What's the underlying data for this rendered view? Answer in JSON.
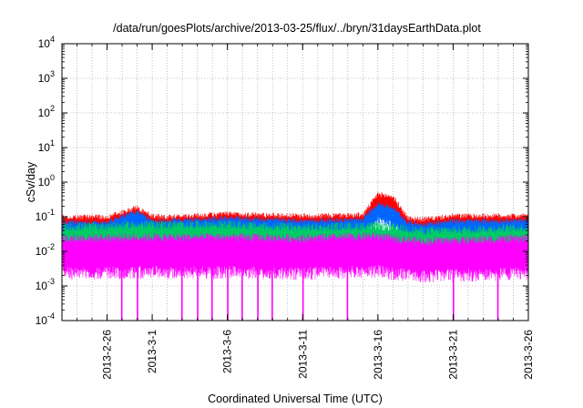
{
  "chart_data": {
    "type": "line",
    "title": "/data/run/goesPlots/archive/2013-03-25/flux/../bryn/31daysEarthData.plot",
    "xlabel": "Coordinated Universal Time (UTC)",
    "ylabel": "cSv/day",
    "x_range": [
      "2013-02-23",
      "2013-03-26"
    ],
    "x_tick_labels": [
      {
        "date": "2013-02-26",
        "label": "2013-2-26"
      },
      {
        "date": "2013-03-01",
        "label": "2013-3-1"
      },
      {
        "date": "2013-03-06",
        "label": "2013-3-6"
      },
      {
        "date": "2013-03-11",
        "label": "2013-3-11"
      },
      {
        "date": "2013-03-16",
        "label": "2013-3-16"
      },
      {
        "date": "2013-03-21",
        "label": "2013-3-21"
      },
      {
        "date": "2013-03-26",
        "label": "2013-3-26"
      }
    ],
    "y_scale": "log",
    "ylim": [
      0.0001,
      10000
    ],
    "y_tick_labels": [
      {
        "base": "10",
        "exp": "-4",
        "value": 0.0001
      },
      {
        "base": "10",
        "exp": "-3",
        "value": 0.001
      },
      {
        "base": "10",
        "exp": "-2",
        "value": 0.01
      },
      {
        "base": "10",
        "exp": "-1",
        "value": 0.1
      },
      {
        "base": "10",
        "exp": "0",
        "value": 1
      },
      {
        "base": "10",
        "exp": "1",
        "value": 10
      },
      {
        "base": "10",
        "exp": "2",
        "value": 100
      },
      {
        "base": "10",
        "exp": "3",
        "value": 1000
      },
      {
        "base": "10",
        "exp": "4",
        "value": 10000
      }
    ],
    "grid": true,
    "legend": "none",
    "series": [
      {
        "color": "#ff0000",
        "x": [
          "2013-02-23",
          "2013-02-26",
          "2013-02-27",
          "2013-02-28",
          "2013-03-01",
          "2013-03-02",
          "2013-03-06",
          "2013-03-11",
          "2013-03-15",
          "2013-03-16",
          "2013-03-17",
          "2013-03-18",
          "2013-03-19",
          "2013-03-21",
          "2013-03-26"
        ],
        "y": [
          0.065,
          0.065,
          0.09,
          0.12,
          0.07,
          0.065,
          0.08,
          0.07,
          0.075,
          0.3,
          0.25,
          0.06,
          0.055,
          0.07,
          0.07
        ]
      },
      {
        "color": "#0066ff",
        "x": [
          "2013-02-23",
          "2013-02-26",
          "2013-02-27",
          "2013-02-28",
          "2013-03-01",
          "2013-03-02",
          "2013-03-06",
          "2013-03-11",
          "2013-03-15",
          "2013-03-16",
          "2013-03-17",
          "2013-03-18",
          "2013-03-19",
          "2013-03-21",
          "2013-03-26"
        ],
        "y": [
          0.045,
          0.045,
          0.07,
          0.09,
          0.05,
          0.05,
          0.06,
          0.05,
          0.055,
          0.16,
          0.12,
          0.045,
          0.04,
          0.05,
          0.05
        ]
      },
      {
        "color": "#00cc66",
        "x": [
          "2013-02-23",
          "2013-02-28",
          "2013-03-06",
          "2013-03-11",
          "2013-03-16",
          "2013-03-17",
          "2013-03-19",
          "2013-03-26"
        ],
        "y": [
          0.025,
          0.03,
          0.03,
          0.025,
          0.028,
          0.025,
          0.02,
          0.025
        ]
      },
      {
        "color": "#ff00ff",
        "x": [
          "2013-02-23",
          "2013-02-28",
          "2013-03-06",
          "2013-03-11",
          "2013-03-16",
          "2013-03-17",
          "2013-03-19",
          "2013-03-26"
        ],
        "y": [
          0.012,
          0.013,
          0.013,
          0.012,
          0.014,
          0.012,
          0.01,
          0.012
        ]
      }
    ],
    "drop_spikes": {
      "color": "#ff00ff",
      "x": [
        "2013-02-27",
        "2013-02-28",
        "2013-03-03",
        "2013-03-04",
        "2013-03-05",
        "2013-03-06",
        "2013-03-07",
        "2013-03-08",
        "2013-03-09",
        "2013-03-11",
        "2013-03-14",
        "2013-03-21",
        "2013-03-24"
      ],
      "y": [
        0.0001,
        0.0001,
        0.0001,
        0.0001,
        0.0001,
        0.0001,
        0.0001,
        0.0001,
        0.0001,
        0.0001,
        0.0001,
        0.0001,
        0.0001
      ]
    }
  }
}
